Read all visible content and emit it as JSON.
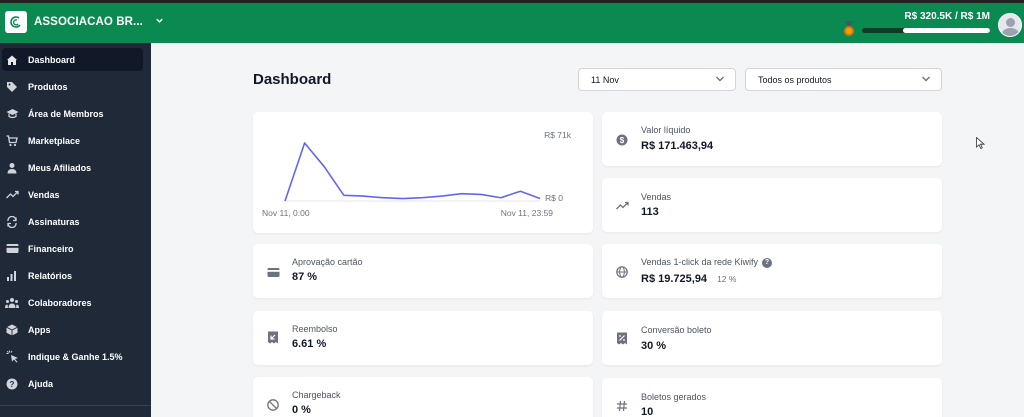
{
  "header": {
    "org_name": "ASSOCIACAO BR...",
    "revenue_label": "R$ 320.5K / R$ 1M",
    "revenue_progress": 0.3205,
    "brand_color": "#0a8a50"
  },
  "sidebar": {
    "items": [
      {
        "label": "Dashboard",
        "icon": "home-icon",
        "active": true
      },
      {
        "label": "Produtos",
        "icon": "tag-icon"
      },
      {
        "label": "Área de Membros",
        "icon": "graduation-cap-icon"
      },
      {
        "label": "Marketplace",
        "icon": "cart-icon"
      },
      {
        "label": "Meus Afiliados",
        "icon": "user-icon"
      },
      {
        "label": "Vendas",
        "icon": "trending-up-icon"
      },
      {
        "label": "Assinaturas",
        "icon": "refresh-icon"
      },
      {
        "label": "Financeiro",
        "icon": "credit-card-icon"
      },
      {
        "label": "Relatórios",
        "icon": "bar-chart-icon"
      },
      {
        "label": "Colaboradores",
        "icon": "users-icon"
      },
      {
        "label": "Apps",
        "icon": "cube-icon"
      },
      {
        "label": "Indique & Ganhe 1.5%",
        "icon": "cursor-click-icon"
      },
      {
        "label": "Ajuda",
        "icon": "question-icon"
      }
    ]
  },
  "main": {
    "title": "Dashboard",
    "date_filter": "11 Nov",
    "product_filter": "Todos os produtos"
  },
  "chart_data": {
    "type": "line",
    "x_start_label": "Nov 11, 0:00",
    "x_end_label": "Nov 11, 23:59",
    "y_max_label": "R$ 71k",
    "y_min_label": "R$ 0",
    "ylim": [
      0,
      71000
    ],
    "values": [
      0,
      71000,
      42000,
      7000,
      6000,
      4000,
      3000,
      4000,
      6000,
      9000,
      8000,
      4000,
      12000,
      3000
    ],
    "line_color": "#6366f1"
  },
  "stats": {
    "valor_liquido": {
      "label": "Valor líquido",
      "value": "R$ 171.463,94"
    },
    "vendas": {
      "label": "Vendas",
      "value": "113"
    },
    "aprovacao": {
      "label": "Aprovação cartão",
      "value": "87 %"
    },
    "vendas_1click": {
      "label": "Vendas 1-click da rede Kiwify",
      "value": "R$ 19.725,94",
      "sub": "12 %"
    },
    "reembolso": {
      "label": "Reembolso",
      "value": "6.61 %"
    },
    "conversao_boleto": {
      "label": "Conversão boleto",
      "value": "30 %"
    },
    "chargeback": {
      "label": "Chargeback",
      "value": "0 %"
    },
    "boletos_gerados": {
      "label": "Boletos gerados",
      "value": "10"
    }
  }
}
